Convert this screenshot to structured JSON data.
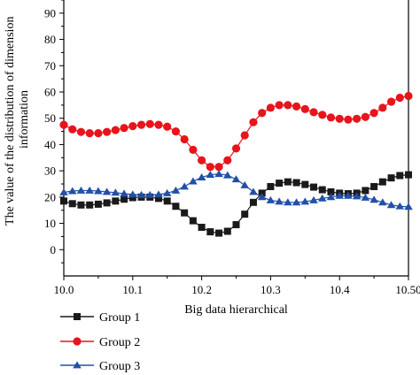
{
  "chart_data": {
    "type": "line",
    "title": "",
    "xlabel": "Big data hierarchical",
    "ylabel_lines": [
      "The value of the distribution of dimension",
      "information"
    ],
    "xlim": [
      10.0,
      10.5
    ],
    "ylim": [
      -10,
      95
    ],
    "x_ticks": [
      10.0,
      10.1,
      10.2,
      10.3,
      10.4,
      10.5
    ],
    "x_tick_labels": [
      "10.0",
      "10.1",
      "10.2",
      "10.3",
      "10.4",
      "10.50"
    ],
    "y_ticks": [
      0,
      10,
      20,
      30,
      40,
      50,
      60,
      70,
      80,
      90
    ],
    "y_tick_labels": [
      "0",
      "10",
      "20",
      "30",
      "40",
      "50",
      "60",
      "70",
      "80",
      "90"
    ],
    "grid": false,
    "legend_position": "below",
    "x": [
      10.0,
      10.0125,
      10.025,
      10.0375,
      10.05,
      10.0625,
      10.075,
      10.0875,
      10.1,
      10.1125,
      10.125,
      10.1375,
      10.15,
      10.1625,
      10.175,
      10.1875,
      10.2,
      10.2125,
      10.225,
      10.2375,
      10.25,
      10.2625,
      10.275,
      10.2875,
      10.3,
      10.3125,
      10.325,
      10.3375,
      10.35,
      10.3625,
      10.375,
      10.3875,
      10.4,
      10.4125,
      10.425,
      10.4375,
      10.45,
      10.4625,
      10.475,
      10.4875,
      10.5
    ],
    "series": [
      {
        "name": "Group 1",
        "color": "#1a1a1a",
        "marker": "square",
        "values": [
          18.5,
          17.5,
          17.0,
          17.0,
          17.3,
          17.8,
          18.5,
          19.2,
          19.8,
          20.0,
          20.0,
          19.5,
          18.5,
          16.5,
          14.0,
          11.0,
          8.5,
          6.8,
          6.3,
          7.0,
          9.5,
          13.5,
          18.0,
          21.5,
          24.0,
          25.3,
          25.8,
          25.5,
          24.8,
          23.8,
          22.8,
          22.0,
          21.5,
          21.3,
          21.5,
          22.5,
          24.0,
          25.8,
          27.3,
          28.2,
          28.5
        ]
      },
      {
        "name": "Group 2",
        "color": "#e8141c",
        "marker": "circle",
        "values": [
          47.5,
          45.8,
          44.8,
          44.3,
          44.3,
          44.8,
          45.5,
          46.3,
          47.0,
          47.5,
          47.8,
          47.5,
          46.8,
          45.0,
          42.0,
          38.0,
          34.0,
          31.5,
          31.5,
          34.0,
          38.5,
          43.5,
          48.5,
          52.0,
          54.0,
          55.0,
          55.0,
          54.5,
          53.5,
          52.3,
          51.3,
          50.3,
          49.8,
          49.5,
          49.8,
          50.5,
          52.0,
          54.0,
          56.3,
          57.8,
          58.5
        ]
      },
      {
        "name": "Group 3",
        "color": "#2250a8",
        "marker": "triangle",
        "values": [
          21.8,
          22.3,
          22.5,
          22.5,
          22.3,
          22.0,
          21.7,
          21.3,
          21.0,
          20.8,
          20.8,
          21.0,
          21.5,
          22.5,
          24.0,
          26.0,
          27.5,
          28.5,
          28.8,
          28.3,
          26.8,
          24.5,
          22.0,
          20.0,
          18.8,
          18.3,
          18.0,
          18.0,
          18.3,
          18.8,
          19.5,
          20.0,
          20.5,
          20.5,
          20.3,
          19.8,
          19.0,
          18.0,
          17.0,
          16.5,
          16.3
        ]
      }
    ]
  }
}
